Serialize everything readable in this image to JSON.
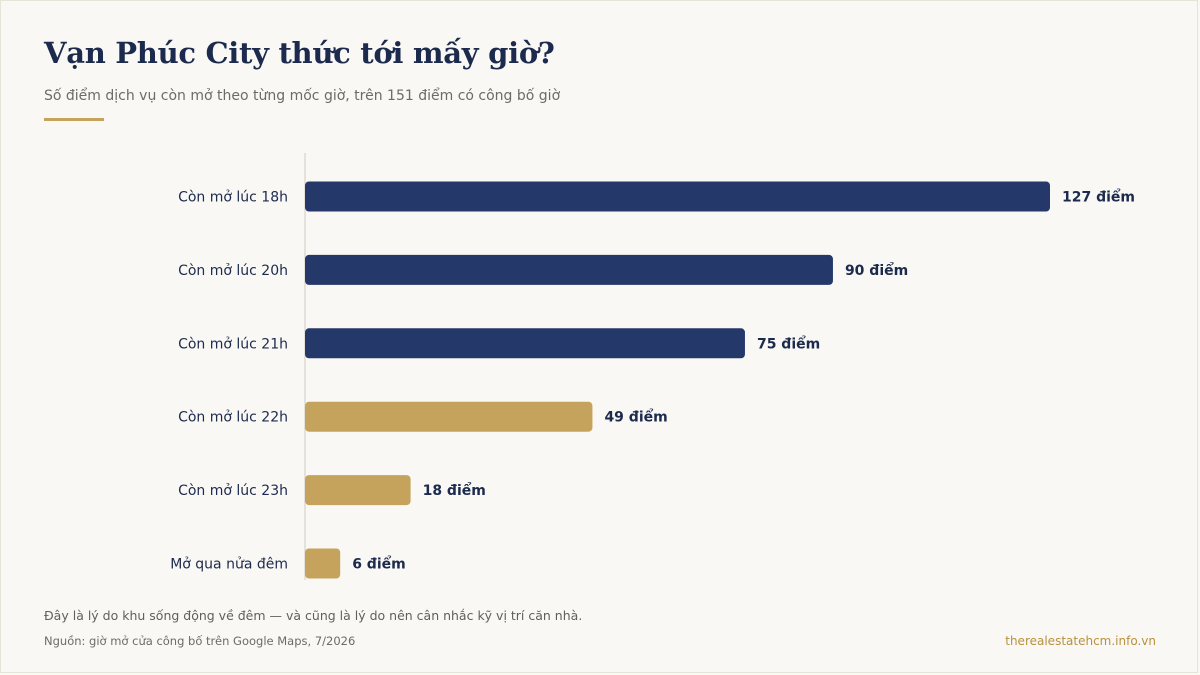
{
  "title": "Vạn Phúc City thức tới mấy giờ?",
  "subtitle": "Số điểm dịch vụ còn mở theo từng mốc giờ, trên 151 điểm có công bố giờ",
  "footnote": "Đây là lý do khu sống động về đêm — và cũng là lý do nên cân nhắc kỹ vị trí căn nhà.",
  "source": "Nguồn: giờ mở cửa công bố trên Google Maps, 7/2026",
  "site": "therealestatehcm.info.vn",
  "colors": {
    "navy": "#24386a",
    "gold": "#c6a35c",
    "axis": "#dedbd2",
    "label": "#1c2a4d"
  },
  "chart_data": {
    "type": "bar",
    "orientation": "horizontal",
    "categories": [
      "Còn mở lúc 18h",
      "Còn mở lúc 20h",
      "Còn mở lúc 21h",
      "Còn mở lúc 22h",
      "Còn mở lúc 23h",
      "Mở qua nửa đêm"
    ],
    "values": [
      127,
      90,
      75,
      49,
      18,
      6
    ],
    "value_labels": [
      "127 điểm",
      "90 điểm",
      "75 điểm",
      "49 điểm",
      "18 điểm",
      "6 điểm"
    ],
    "bar_colors": [
      "#24386a",
      "#24386a",
      "#24386a",
      "#c6a35c",
      "#c6a35c",
      "#c6a35c"
    ],
    "xlim": [
      0,
      127
    ],
    "grid": false
  }
}
